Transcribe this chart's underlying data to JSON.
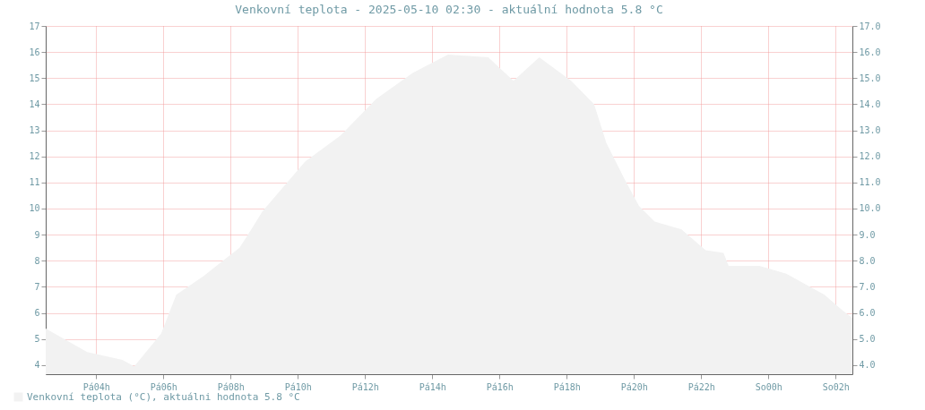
{
  "chart_data": {
    "type": "area",
    "title": "Venkovní teplota - 2025-05-10 02:30 - aktuální hodnota 5.8 °C",
    "x": [
      "2025-05-09T02:30",
      "2025-05-09T03:44",
      "2025-05-09T04:47",
      "2025-05-09T05:08",
      "2025-05-09T05:56",
      "2025-05-09T06:23",
      "2025-05-09T07:11",
      "2025-05-09T08:16",
      "2025-05-09T08:37",
      "2025-05-09T08:57",
      "2025-05-09T10:13",
      "2025-05-09T11:16",
      "2025-05-09T12:20",
      "2025-05-09T13:25",
      "2025-05-09T14:28",
      "2025-05-09T15:40",
      "2025-05-09T16:25",
      "2025-05-09T17:11",
      "2025-05-09T18:08",
      "2025-05-09T18:49",
      "2025-05-09T19:11",
      "2025-05-09T19:44",
      "2025-05-09T20:09",
      "2025-05-09T20:37",
      "2025-05-09T21:25",
      "2025-05-09T22:08",
      "2025-05-09T22:40",
      "2025-05-09T22:49",
      "2025-05-09T23:44",
      "2025-05-10T00:32",
      "2025-05-10T01:40",
      "2025-05-10T02:12",
      "2025-05-10T02:30"
    ],
    "series": [
      {
        "name": "Venkovní teplota (°C), aktuálni hodnota 5.8 °C",
        "color": "#f2f2f2",
        "values": [
          5.4,
          4.5,
          4.2,
          3.95,
          5.2,
          6.7,
          7.4,
          8.5,
          9.2,
          9.9,
          11.8,
          12.8,
          14.2,
          15.2,
          15.9,
          15.8,
          14.9,
          15.8,
          14.9,
          14.0,
          12.5,
          11.1,
          10.1,
          9.5,
          9.2,
          8.4,
          8.3,
          7.8,
          7.8,
          7.5,
          6.7,
          6.1,
          5.8
        ]
      }
    ],
    "xlim": [
      "2025-05-09T02:30",
      "2025-05-10T02:30"
    ],
    "xticks": [
      {
        "value": "2025-05-09T04:00",
        "label": "Pá04h"
      },
      {
        "value": "2025-05-09T06:00",
        "label": "Pá06h"
      },
      {
        "value": "2025-05-09T08:00",
        "label": "Pá08h"
      },
      {
        "value": "2025-05-09T10:00",
        "label": "Pá10h"
      },
      {
        "value": "2025-05-09T12:00",
        "label": "Pá12h"
      },
      {
        "value": "2025-05-09T14:00",
        "label": "Pá14h"
      },
      {
        "value": "2025-05-09T16:00",
        "label": "Pá16h"
      },
      {
        "value": "2025-05-09T18:00",
        "label": "Pá18h"
      },
      {
        "value": "2025-05-09T20:00",
        "label": "Pá20h"
      },
      {
        "value": "2025-05-09T22:00",
        "label": "Pá22h"
      },
      {
        "value": "2025-05-10T00:00",
        "label": "So00h"
      },
      {
        "value": "2025-05-10T02:00",
        "label": "So02h"
      }
    ],
    "ylim": [
      3.65,
      17
    ],
    "yticks": [
      4,
      5,
      6,
      7,
      8,
      9,
      10,
      11,
      12,
      13,
      14,
      15,
      16,
      17
    ],
    "y2lim": [
      3.65,
      17
    ],
    "y2ticks": [
      {
        "value": 4,
        "label": "4.0"
      },
      {
        "value": 5,
        "label": "5.0"
      },
      {
        "value": 6,
        "label": "6.0"
      },
      {
        "value": 7,
        "label": "7.0"
      },
      {
        "value": 8,
        "label": "8.0"
      },
      {
        "value": 9,
        "label": "9.0"
      },
      {
        "value": 10,
        "label": "10.0"
      },
      {
        "value": 11,
        "label": "11.0"
      },
      {
        "value": 12,
        "label": "12.0"
      },
      {
        "value": 13,
        "label": "13.0"
      },
      {
        "value": 14,
        "label": "14.0"
      },
      {
        "value": 15,
        "label": "15.0"
      },
      {
        "value": 16,
        "label": "16.0"
      },
      {
        "value": 17,
        "label": "17.0"
      }
    ],
    "grid": true,
    "legend": "bottom left"
  }
}
